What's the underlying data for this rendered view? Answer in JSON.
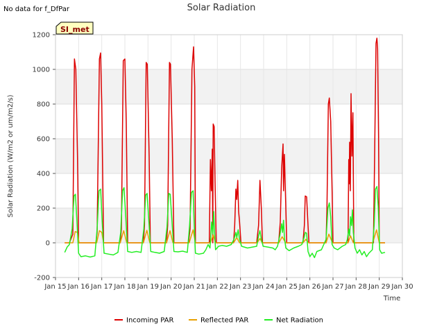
{
  "notice": "No data for f_DfPar",
  "site_badge": "SI_met",
  "chart_data": {
    "type": "line",
    "title": "Solar Radiation",
    "xlabel": "Time",
    "ylabel": "Solar Radiation (W/m2 or um/m2/s)",
    "xlim": [
      0,
      15
    ],
    "ylim": [
      -200,
      1200
    ],
    "yticks": [
      -200,
      0,
      200,
      400,
      600,
      800,
      1000,
      1200
    ],
    "xtick_labels": [
      "Jan 15",
      "Jan 16",
      "Jan 17",
      "Jan 18",
      "Jan 19",
      "Jan 20",
      "Jan 21",
      "Jan 22",
      "Jan 23",
      "Jan 24",
      "Jan 25",
      "Jan 26",
      "Jan 27",
      "Jan 28",
      "Jan 29",
      "Jan 30"
    ],
    "grid": true,
    "legend": [
      "Incoming PAR",
      "Reflected PAR",
      "Net Radiation"
    ],
    "series": [
      {
        "name": "Incoming PAR",
        "color": "#dd0000",
        "points": [
          [
            0.4,
            0
          ],
          [
            0.6,
            0
          ],
          [
            0.75,
            50
          ],
          [
            0.82,
            1060
          ],
          [
            0.88,
            1000
          ],
          [
            0.95,
            500
          ],
          [
            1.0,
            0
          ],
          [
            1.75,
            0
          ],
          [
            1.8,
            60
          ],
          [
            1.9,
            1060
          ],
          [
            1.95,
            1095
          ],
          [
            2.0,
            800
          ],
          [
            2.08,
            0
          ],
          [
            2.8,
            0
          ],
          [
            2.85,
            80
          ],
          [
            2.93,
            1050
          ],
          [
            3.0,
            1060
          ],
          [
            3.06,
            700
          ],
          [
            3.12,
            0
          ],
          [
            3.8,
            0
          ],
          [
            3.85,
            100
          ],
          [
            3.92,
            1040
          ],
          [
            3.97,
            1030
          ],
          [
            4.05,
            500
          ],
          [
            4.1,
            0
          ],
          [
            4.8,
            0
          ],
          [
            4.85,
            100
          ],
          [
            4.93,
            1040
          ],
          [
            4.97,
            1030
          ],
          [
            5.05,
            600
          ],
          [
            5.12,
            0
          ],
          [
            5.75,
            0
          ],
          [
            5.82,
            80
          ],
          [
            5.9,
            1000
          ],
          [
            5.97,
            1130
          ],
          [
            6.02,
            900
          ],
          [
            6.05,
            0
          ],
          [
            6.65,
            0
          ],
          [
            6.7,
            480
          ],
          [
            6.74,
            300
          ],
          [
            6.78,
            540
          ],
          [
            6.8,
            0
          ],
          [
            6.82,
            685
          ],
          [
            6.86,
            670
          ],
          [
            6.9,
            350
          ],
          [
            6.95,
            0
          ],
          [
            7.7,
            0
          ],
          [
            7.75,
            100
          ],
          [
            7.8,
            310
          ],
          [
            7.84,
            250
          ],
          [
            7.88,
            360
          ],
          [
            7.92,
            180
          ],
          [
            7.96,
            120
          ],
          [
            8.02,
            0
          ],
          [
            8.7,
            0
          ],
          [
            8.78,
            100
          ],
          [
            8.84,
            360
          ],
          [
            8.9,
            200
          ],
          [
            8.95,
            0
          ],
          [
            9.65,
            0
          ],
          [
            9.72,
            120
          ],
          [
            9.78,
            430
          ],
          [
            9.84,
            570
          ],
          [
            9.86,
            300
          ],
          [
            9.9,
            510
          ],
          [
            9.96,
            200
          ],
          [
            10.0,
            0
          ],
          [
            10.7,
            0
          ],
          [
            10.76,
            100
          ],
          [
            10.8,
            270
          ],
          [
            10.86,
            265
          ],
          [
            10.92,
            100
          ],
          [
            10.96,
            0
          ],
          [
            11.7,
            0
          ],
          [
            11.74,
            200
          ],
          [
            11.8,
            800
          ],
          [
            11.84,
            835
          ],
          [
            11.9,
            700
          ],
          [
            11.96,
            300
          ],
          [
            12.0,
            0
          ],
          [
            12.65,
            0
          ],
          [
            12.68,
            480
          ],
          [
            12.7,
            340
          ],
          [
            12.72,
            580
          ],
          [
            12.75,
            300
          ],
          [
            12.78,
            860
          ],
          [
            12.82,
            500
          ],
          [
            12.86,
            750
          ],
          [
            12.9,
            0
          ],
          [
            13.75,
            0
          ],
          [
            13.8,
            500
          ],
          [
            13.86,
            1150
          ],
          [
            13.9,
            1180
          ],
          [
            13.93,
            1120
          ],
          [
            13.97,
            600
          ],
          [
            14.0,
            0
          ],
          [
            14.25,
            0
          ]
        ]
      },
      {
        "name": "Reflected PAR",
        "color": "#e8a000",
        "points": [
          [
            0.4,
            0
          ],
          [
            0.75,
            0
          ],
          [
            0.85,
            65
          ],
          [
            0.95,
            60
          ],
          [
            1.02,
            0
          ],
          [
            1.78,
            0
          ],
          [
            1.9,
            70
          ],
          [
            2.0,
            60
          ],
          [
            2.08,
            0
          ],
          [
            2.8,
            0
          ],
          [
            2.95,
            70
          ],
          [
            3.08,
            0
          ],
          [
            3.8,
            0
          ],
          [
            3.95,
            72
          ],
          [
            4.08,
            0
          ],
          [
            4.8,
            0
          ],
          [
            4.95,
            70
          ],
          [
            5.08,
            0
          ],
          [
            5.78,
            0
          ],
          [
            5.95,
            75
          ],
          [
            6.05,
            0
          ],
          [
            6.7,
            0
          ],
          [
            6.82,
            45
          ],
          [
            6.92,
            0
          ],
          [
            7.7,
            0
          ],
          [
            7.84,
            30
          ],
          [
            7.96,
            0
          ],
          [
            8.72,
            0
          ],
          [
            8.84,
            25
          ],
          [
            8.94,
            0
          ],
          [
            9.66,
            0
          ],
          [
            9.8,
            35
          ],
          [
            9.95,
            0
          ],
          [
            10.7,
            0
          ],
          [
            10.82,
            20
          ],
          [
            10.95,
            0
          ],
          [
            11.7,
            0
          ],
          [
            11.82,
            50
          ],
          [
            11.98,
            0
          ],
          [
            12.65,
            0
          ],
          [
            12.76,
            40
          ],
          [
            12.88,
            0
          ],
          [
            13.72,
            0
          ],
          [
            13.88,
            75
          ],
          [
            14.0,
            0
          ],
          [
            14.25,
            0
          ]
        ]
      },
      {
        "name": "Net Radiation",
        "color": "#22ee22",
        "points": [
          [
            0.4,
            -55
          ],
          [
            0.5,
            -25
          ],
          [
            0.6,
            -10
          ],
          [
            0.72,
            80
          ],
          [
            0.8,
            270
          ],
          [
            0.86,
            280
          ],
          [
            0.92,
            140
          ],
          [
            1.0,
            -60
          ],
          [
            1.1,
            -80
          ],
          [
            1.3,
            -75
          ],
          [
            1.5,
            -82
          ],
          [
            1.7,
            -75
          ],
          [
            1.8,
            80
          ],
          [
            1.88,
            300
          ],
          [
            1.95,
            310
          ],
          [
            2.02,
            120
          ],
          [
            2.1,
            -60
          ],
          [
            2.3,
            -65
          ],
          [
            2.5,
            -70
          ],
          [
            2.7,
            -55
          ],
          [
            2.82,
            60
          ],
          [
            2.9,
            300
          ],
          [
            2.96,
            318
          ],
          [
            3.04,
            150
          ],
          [
            3.12,
            -50
          ],
          [
            3.3,
            -55
          ],
          [
            3.5,
            -50
          ],
          [
            3.7,
            -55
          ],
          [
            3.82,
            80
          ],
          [
            3.9,
            275
          ],
          [
            3.96,
            285
          ],
          [
            4.04,
            120
          ],
          [
            4.12,
            -50
          ],
          [
            4.3,
            -55
          ],
          [
            4.5,
            -60
          ],
          [
            4.7,
            -50
          ],
          [
            4.82,
            90
          ],
          [
            4.9,
            285
          ],
          [
            4.96,
            280
          ],
          [
            5.04,
            120
          ],
          [
            5.12,
            -50
          ],
          [
            5.3,
            -52
          ],
          [
            5.5,
            -48
          ],
          [
            5.7,
            -55
          ],
          [
            5.8,
            100
          ],
          [
            5.88,
            290
          ],
          [
            5.95,
            300
          ],
          [
            6.0,
            100
          ],
          [
            6.05,
            -60
          ],
          [
            6.2,
            -65
          ],
          [
            6.4,
            -60
          ],
          [
            6.5,
            -40
          ],
          [
            6.6,
            -10
          ],
          [
            6.68,
            -30
          ],
          [
            6.75,
            120
          ],
          [
            6.8,
            50
          ],
          [
            6.84,
            180
          ],
          [
            6.88,
            60
          ],
          [
            6.92,
            -40
          ],
          [
            7.05,
            -20
          ],
          [
            7.2,
            -15
          ],
          [
            7.4,
            -20
          ],
          [
            7.6,
            -10
          ],
          [
            7.72,
            20
          ],
          [
            7.8,
            60
          ],
          [
            7.84,
            30
          ],
          [
            7.9,
            75
          ],
          [
            7.96,
            20
          ],
          [
            8.05,
            -20
          ],
          [
            8.3,
            -30
          ],
          [
            8.5,
            -25
          ],
          [
            8.7,
            -20
          ],
          [
            8.78,
            40
          ],
          [
            8.84,
            70
          ],
          [
            8.9,
            20
          ],
          [
            8.98,
            -20
          ],
          [
            9.2,
            -25
          ],
          [
            9.4,
            -30
          ],
          [
            9.5,
            -40
          ],
          [
            9.6,
            -20
          ],
          [
            9.7,
            40
          ],
          [
            9.78,
            110
          ],
          [
            9.82,
            60
          ],
          [
            9.86,
            130
          ],
          [
            9.9,
            30
          ],
          [
            9.96,
            -30
          ],
          [
            10.1,
            -45
          ],
          [
            10.3,
            -30
          ],
          [
            10.5,
            -20
          ],
          [
            10.65,
            -10
          ],
          [
            10.75,
            30
          ],
          [
            10.8,
            60
          ],
          [
            10.86,
            55
          ],
          [
            10.92,
            -50
          ],
          [
            11.0,
            -80
          ],
          [
            11.1,
            -60
          ],
          [
            11.2,
            -85
          ],
          [
            11.3,
            -50
          ],
          [
            11.5,
            -40
          ],
          [
            11.7,
            20
          ],
          [
            11.78,
            200
          ],
          [
            11.84,
            230
          ],
          [
            11.9,
            150
          ],
          [
            11.96,
            -10
          ],
          [
            12.05,
            -30
          ],
          [
            12.2,
            -40
          ],
          [
            12.4,
            -20
          ],
          [
            12.55,
            -10
          ],
          [
            12.62,
            20
          ],
          [
            12.68,
            80
          ],
          [
            12.72,
            40
          ],
          [
            12.76,
            150
          ],
          [
            12.8,
            100
          ],
          [
            12.84,
            190
          ],
          [
            12.88,
            60
          ],
          [
            12.95,
            -30
          ],
          [
            13.05,
            -60
          ],
          [
            13.15,
            -40
          ],
          [
            13.25,
            -70
          ],
          [
            13.35,
            -50
          ],
          [
            13.45,
            -80
          ],
          [
            13.55,
            -60
          ],
          [
            13.7,
            -40
          ],
          [
            13.78,
            100
          ],
          [
            13.84,
            310
          ],
          [
            13.9,
            325
          ],
          [
            13.96,
            200
          ],
          [
            14.02,
            -40
          ],
          [
            14.1,
            -60
          ],
          [
            14.25,
            -55
          ]
        ]
      }
    ]
  }
}
